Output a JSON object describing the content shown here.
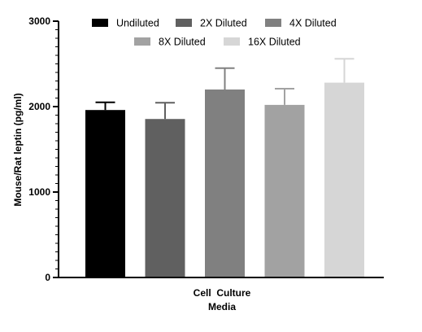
{
  "chart_data": {
    "type": "bar",
    "title": "",
    "xlabel_lines": [
      "Cell  Culture",
      "Media"
    ],
    "ylabel": "Mouse/Rat leptin (pg/ml)",
    "ylim": [
      0,
      3000
    ],
    "yticks": [
      0,
      1000,
      2000,
      3000
    ],
    "legend_position": "top",
    "series": [
      {
        "name": "Undiluted",
        "value": 1960,
        "error": 90,
        "color": "#000000"
      },
      {
        "name": "2X Diluted",
        "value": 1855,
        "error": 190,
        "color": "#606060"
      },
      {
        "name": "4X Diluted",
        "value": 2200,
        "error": 250,
        "color": "#808080"
      },
      {
        "name": "8X Diluted",
        "value": 2020,
        "error": 190,
        "color": "#a2a2a2"
      },
      {
        "name": "16X Diluted",
        "value": 2280,
        "error": 280,
        "color": "#d6d6d6"
      }
    ]
  }
}
